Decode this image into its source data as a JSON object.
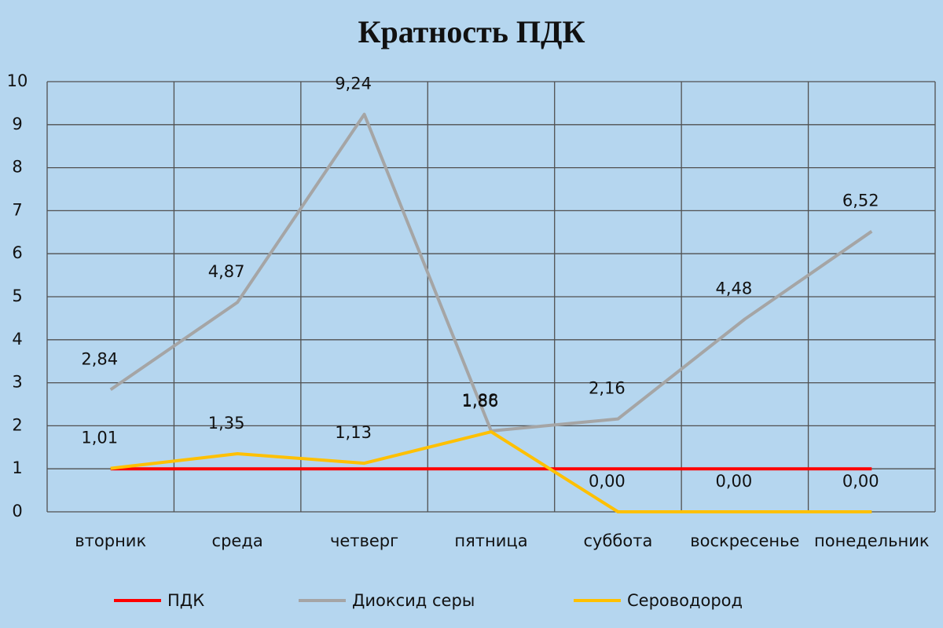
{
  "chart_data": {
    "type": "line",
    "title": "Кратность ПДК",
    "categories": [
      "вторник",
      "среда",
      "четверг",
      "пятница",
      "суббота",
      "воскресенье",
      "понедельник"
    ],
    "series": [
      {
        "name": "ПДК",
        "color": "#ff0000",
        "values": [
          1,
          1,
          1,
          1,
          1,
          1,
          1
        ]
      },
      {
        "name": "Диоксид серы",
        "color": "#a5a5a5",
        "values": [
          2.84,
          4.87,
          9.24,
          1.88,
          2.16,
          4.48,
          6.52
        ],
        "value_labels": [
          "2,84",
          "4,87",
          "9,24",
          "1,88",
          "2,16",
          "4,48",
          "6,52"
        ]
      },
      {
        "name": "Сероводород",
        "color": "#ffc000",
        "values": [
          1.01,
          1.35,
          1.13,
          1.86,
          0,
          0,
          0
        ],
        "value_labels": [
          "1,01",
          "1,35",
          "1,13",
          "1,86",
          "0,00",
          "0,00",
          "0,00"
        ]
      }
    ],
    "ylim": [
      0,
      10
    ],
    "yticks": [
      0,
      1,
      2,
      3,
      4,
      5,
      6,
      7,
      8,
      9,
      10
    ],
    "grid": true,
    "legend": "bottom"
  }
}
